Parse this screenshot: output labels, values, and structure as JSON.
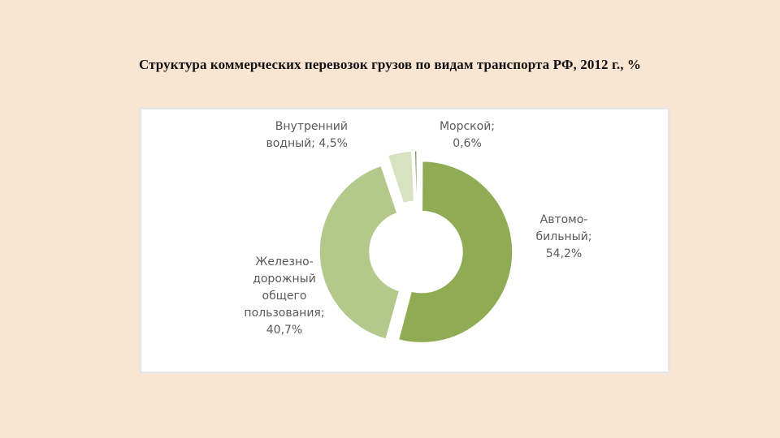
{
  "title": "Структура коммерческих перевозок грузов по видам транспорта РФ, 2012 г., %",
  "chart_data": {
    "type": "pie",
    "style": "donut, exploded slices",
    "legend": "none",
    "series": [
      {
        "name": "Автомобильный",
        "value": 54.2,
        "color": "#8fac55",
        "label_lines": [
          "Автомо-",
          "бильный;",
          "54,2%"
        ]
      },
      {
        "name": "Железнодорожный общего пользования",
        "value": 40.7,
        "color": "#b2c98b",
        "label_lines": [
          "Железно-",
          "дорожный",
          "общего",
          "пользования;",
          "40,7%"
        ]
      },
      {
        "name": "Внутренний водный",
        "value": 4.5,
        "color": "#d6e2c2",
        "label_lines": [
          "Внутренний",
          "водный; 4,5%"
        ]
      },
      {
        "name": "Морской",
        "value": 0.6,
        "color": "#6f8a3c",
        "label_lines": [
          "Морской;",
          "0,6%"
        ]
      }
    ]
  }
}
